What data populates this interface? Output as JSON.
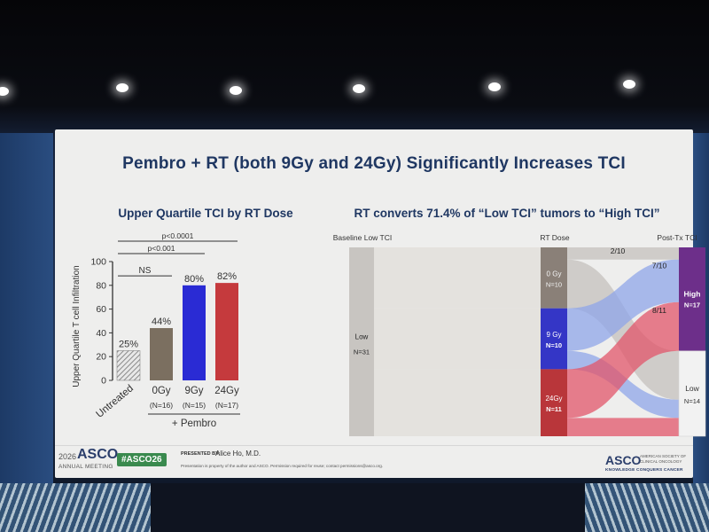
{
  "slide": {
    "title": "Pembro + RT (both 9Gy and 24Gy) Significantly Increases TCI",
    "left_title": "Upper Quartile TCI by RT Dose",
    "right_title": "RT converts 71.4% of “Low TCI” tumors to “High TCI”"
  },
  "footer": {
    "year": "2026",
    "asco": "ASCO",
    "annual_meeting": "ANNUAL MEETING",
    "hashtag": "#ASCO26",
    "presented_by": "PRESENTED BY:",
    "presenter": "Alice Ho, M.D.",
    "disclaimer": "Presentation is property of the author and ASCO. Permission required for reuse; contact permissions@asco.org.",
    "society": "AMERICAN SOCIETY OF CLINICAL ONCOLOGY",
    "tagline": "KNOWLEDGE CONQUERS CANCER"
  },
  "colors": {
    "title_navy": "#1f3762",
    "bar_untreated": "#9a9a9a",
    "bar_0gy": "#7b6f60",
    "bar_9gy": "#2a2bd4",
    "bar_24gy": "#c53a3d",
    "flow_blue": "#8fa5e8",
    "flow_red": "#e2566a",
    "node_high": "#6d2f8a",
    "hashtag_green": "#3a8a4e"
  },
  "chart_data": [
    {
      "type": "bar",
      "title": "Upper Quartile TCI by RT Dose",
      "ylabel": "Upper Quartile T cell Infiltration",
      "ylim": [
        0,
        100
      ],
      "yticks": [
        "0",
        "20",
        "40",
        "60",
        "80",
        "100"
      ],
      "categories": [
        "Untreated",
        "0Gy",
        "9Gy",
        "24Gy"
      ],
      "sublabels": [
        "",
        "(N=16)",
        "(N=15)",
        "(N=17)"
      ],
      "values": [
        25,
        44,
        80,
        82
      ],
      "data_labels": [
        "25%",
        "44%",
        "80%",
        "82%"
      ],
      "group_label": "+ Pembro",
      "significance": [
        "p<0.0001",
        "p<0.001",
        "NS"
      ]
    },
    {
      "type": "sankey",
      "title": "RT converts 71.4% of “Low TCI” tumors to “High TCI”",
      "columns": [
        "Baseline Low TCI",
        "RT Dose",
        "Post-Tx TCI"
      ],
      "nodes": [
        {
          "name": "Low",
          "label": "N=31",
          "column": 0
        },
        {
          "name": "0 Gy",
          "label": "N=10",
          "column": 1
        },
        {
          "name": "9 Gy",
          "label": "N=10",
          "column": 1
        },
        {
          "name": "24Gy",
          "label": "N=11",
          "column": 1
        },
        {
          "name": "High",
          "label": "N=17",
          "column": 2
        },
        {
          "name": "Low",
          "label": "N=14",
          "column": 2
        }
      ],
      "flow_labels": [
        "2/10",
        "7/10",
        "8/11"
      ],
      "flows": [
        {
          "from": "0 Gy",
          "to": "High",
          "value": 2,
          "label": "2/10"
        },
        {
          "from": "0 Gy",
          "to": "Low",
          "value": 8
        },
        {
          "from": "9 Gy",
          "to": "High",
          "value": 7,
          "label": "7/10"
        },
        {
          "from": "9 Gy",
          "to": "Low",
          "value": 3
        },
        {
          "from": "24Gy",
          "to": "High",
          "value": 8,
          "label": "8/11"
        },
        {
          "from": "24Gy",
          "to": "Low",
          "value": 3
        }
      ]
    }
  ]
}
